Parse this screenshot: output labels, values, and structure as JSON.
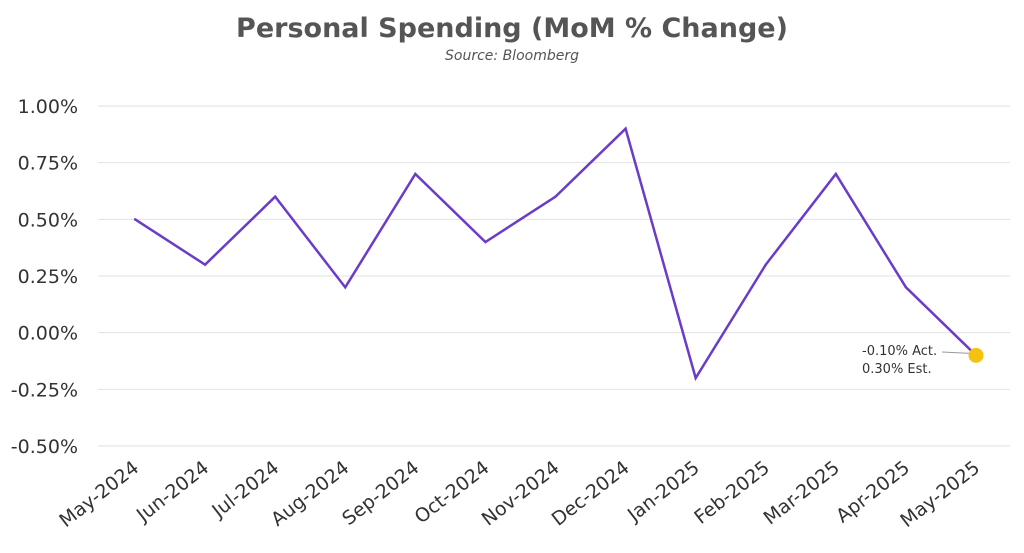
{
  "chart_data": {
    "type": "line",
    "title": "Personal Spending (MoM % Change)",
    "subtitle": "Source: Bloomberg",
    "xlabel": "",
    "ylabel": "",
    "ylim": [
      -0.5,
      1.0
    ],
    "yticks": [
      1.0,
      0.75,
      0.5,
      0.25,
      0.0,
      -0.25,
      -0.5
    ],
    "ytick_labels": [
      "1.00%",
      "0.75%",
      "0.50%",
      "0.25%",
      "0.00%",
      "-0.25%",
      "-0.50%"
    ],
    "grid": true,
    "categories": [
      "May-2024",
      "Jun-2024",
      "Jul-2024",
      "Aug-2024",
      "Sep-2024",
      "Oct-2024",
      "Nov-2024",
      "Dec-2024",
      "Jan-2025",
      "Feb-2025",
      "Mar-2025",
      "Apr-2025",
      "May-2025"
    ],
    "series": [
      {
        "values": [
          0.5,
          0.3,
          0.6,
          0.2,
          0.7,
          0.4,
          0.6,
          0.9,
          -0.2,
          0.3,
          0.7,
          0.2,
          -0.1
        ],
        "color": "#6a3cc8"
      }
    ],
    "highlight": {
      "category": "May-2025",
      "value": -0.1,
      "color": "#f5c20f",
      "annotation_lines": [
        "-0.10% Act.",
        "0.30% Est."
      ]
    }
  }
}
